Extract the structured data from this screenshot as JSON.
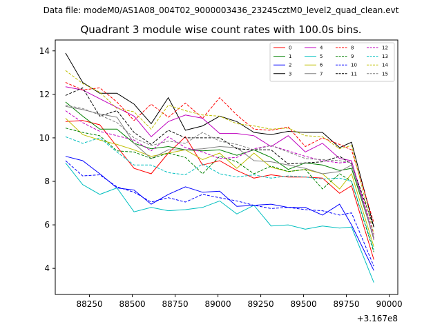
{
  "figure": {
    "suptitle": "Data file: modeM0/AS1A08_004T02_9000003436_23245cztM0_level2_quad_clean.evt"
  },
  "chart_data": {
    "type": "line",
    "title": "Quadrant 3 module wise count rates with 100.0s bins.",
    "xlabel": "",
    "ylabel": "",
    "x_offset_text": "+3.167e8",
    "x_offset": 316700000,
    "xlim": [
      88050,
      90050
    ],
    "ylim": [
      2.8,
      14.5
    ],
    "x_ticks": [
      88250,
      88500,
      88750,
      89000,
      89250,
      89500,
      89750,
      90000
    ],
    "y_ticks": [
      4,
      6,
      8,
      10,
      12,
      14
    ],
    "grid": false,
    "legend_location": "upper right",
    "x": [
      88110,
      88210,
      88310,
      88410,
      88510,
      88610,
      88710,
      88810,
      88910,
      89010,
      89110,
      89210,
      89310,
      89410,
      89510,
      89610,
      89710,
      89780,
      89910
    ],
    "series": [
      {
        "name": "0",
        "color": "#ff0000",
        "dash": "solid",
        "values": [
          10.75,
          10.8,
          10.6,
          9.6,
          8.6,
          8.35,
          9.3,
          10.05,
          8.75,
          8.95,
          8.5,
          8.15,
          8.3,
          8.2,
          8.2,
          8.15,
          7.45,
          7.8,
          4.4
        ]
      },
      {
        "name": "1",
        "color": "#008000",
        "dash": "solid",
        "values": [
          11.65,
          11.0,
          10.4,
          10.4,
          9.75,
          9.5,
          9.6,
          9.45,
          9.4,
          9.45,
          9.2,
          9.45,
          9.1,
          8.55,
          8.85,
          8.75,
          8.5,
          8.6,
          5.4
        ]
      },
      {
        "name": "2",
        "color": "#0000ff",
        "dash": "solid",
        "values": [
          9.15,
          8.95,
          8.35,
          7.7,
          7.6,
          6.95,
          7.4,
          7.75,
          7.5,
          7.55,
          6.85,
          6.9,
          6.95,
          6.8,
          6.8,
          6.45,
          6.95,
          6.0,
          3.9
        ]
      },
      {
        "name": "3",
        "color": "#000000",
        "dash": "solid",
        "values": [
          13.9,
          12.55,
          12.05,
          12.05,
          11.55,
          10.65,
          11.85,
          10.35,
          10.55,
          11.0,
          10.75,
          10.25,
          10.15,
          10.3,
          10.25,
          10.25,
          9.55,
          9.8,
          5.9
        ]
      },
      {
        "name": "4",
        "color": "#bf00bf",
        "dash": "solid",
        "values": [
          12.35,
          12.2,
          11.8,
          11.4,
          11.0,
          10.05,
          10.75,
          11.05,
          10.9,
          10.2,
          10.2,
          10.1,
          9.6,
          10.1,
          9.35,
          9.75,
          9.05,
          8.95,
          5.35
        ]
      },
      {
        "name": "5",
        "color": "#00bfbf",
        "dash": "solid",
        "values": [
          8.85,
          7.85,
          7.4,
          7.7,
          6.6,
          6.8,
          6.65,
          6.7,
          6.8,
          7.1,
          6.5,
          6.9,
          5.95,
          6.0,
          5.8,
          5.95,
          5.85,
          5.9,
          3.35
        ]
      },
      {
        "name": "6",
        "color": "#bfbf00",
        "dash": "solid",
        "values": [
          10.9,
          10.15,
          9.9,
          9.7,
          9.45,
          9.15,
          9.3,
          9.45,
          9.0,
          9.3,
          8.6,
          9.3,
          8.65,
          8.45,
          8.55,
          8.35,
          7.65,
          8.35,
          5.0
        ]
      },
      {
        "name": "7",
        "color": "#808080",
        "dash": "solid",
        "values": [
          11.45,
          11.3,
          11.1,
          10.95,
          9.75,
          9.05,
          9.45,
          9.45,
          9.5,
          9.6,
          9.55,
          8.95,
          8.9,
          8.75,
          8.6,
          8.35,
          8.45,
          8.75,
          5.4
        ]
      },
      {
        "name": "8",
        "color": "#ff0000",
        "dash": "dashed",
        "values": [
          12.55,
          12.2,
          12.3,
          11.65,
          10.8,
          11.55,
          10.95,
          11.6,
          10.9,
          11.85,
          11.05,
          10.4,
          10.35,
          10.5,
          9.6,
          10.0,
          9.7,
          9.45,
          6.1
        ]
      },
      {
        "name": "9",
        "color": "#008000",
        "dash": "dashed",
        "values": [
          10.45,
          10.25,
          10.1,
          9.4,
          9.35,
          9.05,
          9.3,
          9.1,
          8.35,
          9.15,
          8.9,
          8.35,
          8.7,
          8.45,
          8.55,
          7.65,
          8.35,
          8.0,
          4.75
        ]
      },
      {
        "name": "10",
        "color": "#0000ff",
        "dash": "dashed",
        "values": [
          8.95,
          8.25,
          8.3,
          7.75,
          7.5,
          7.05,
          7.25,
          7.05,
          7.4,
          7.25,
          7.1,
          6.9,
          6.75,
          6.8,
          6.7,
          6.65,
          6.45,
          6.55,
          4.1
        ]
      },
      {
        "name": "11",
        "color": "#000000",
        "dash": "dashed",
        "values": [
          11.95,
          12.3,
          11.0,
          11.25,
          10.25,
          9.7,
          10.35,
          10.0,
          10.0,
          10.0,
          9.5,
          9.45,
          9.45,
          8.8,
          8.85,
          8.9,
          9.15,
          8.8,
          5.9
        ]
      },
      {
        "name": "12",
        "color": "#bf00bf",
        "dash": "dashed",
        "values": [
          11.25,
          10.7,
          10.3,
          10.1,
          9.9,
          9.4,
          10.05,
          9.55,
          9.35,
          9.05,
          9.1,
          9.5,
          9.65,
          9.4,
          9.15,
          8.95,
          8.85,
          8.9,
          5.55
        ]
      },
      {
        "name": "13",
        "color": "#00bfbf",
        "dash": "dashed",
        "values": [
          10.05,
          9.75,
          10.0,
          9.35,
          8.75,
          8.75,
          8.4,
          8.3,
          8.8,
          8.35,
          8.2,
          8.3,
          8.15,
          8.25,
          8.2,
          8.1,
          8.15,
          8.0,
          4.85
        ]
      },
      {
        "name": "14",
        "color": "#bfbf00",
        "dash": "dashed",
        "values": [
          13.1,
          12.5,
          12.1,
          11.35,
          11.2,
          10.4,
          11.5,
          11.25,
          11.05,
          11.0,
          10.65,
          10.55,
          10.4,
          10.45,
          10.1,
          10.05,
          9.5,
          9.65,
          5.6
        ]
      },
      {
        "name": "15",
        "color": "#808080",
        "dash": "dashed",
        "values": [
          11.5,
          11.35,
          11.05,
          10.7,
          10.0,
          9.65,
          9.85,
          9.75,
          10.25,
          9.85,
          9.7,
          9.45,
          9.65,
          9.35,
          9.05,
          9.0,
          8.95,
          8.85,
          5.3
        ]
      }
    ]
  }
}
